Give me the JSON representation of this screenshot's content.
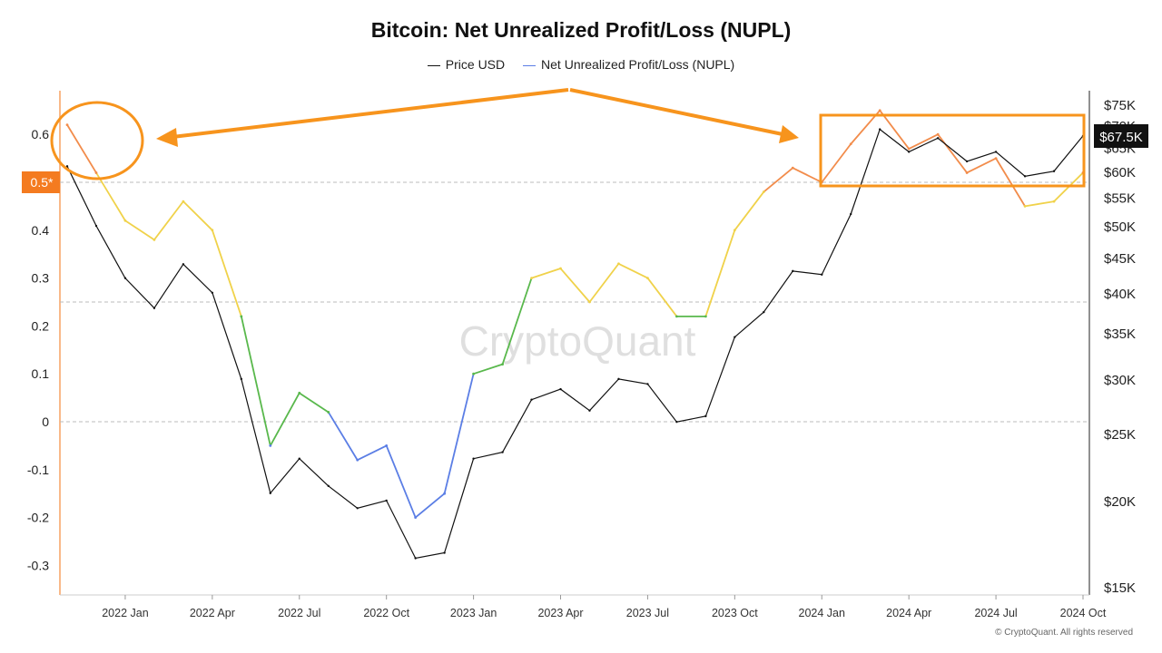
{
  "chart_data": {
    "type": "line",
    "title": "Bitcoin: Net Unrealized Profit/Loss (NUPL)",
    "left_axis": {
      "ticks": [
        "0.6",
        "0.5",
        "0.4",
        "0.3",
        "0.2",
        "0.1",
        "0",
        "-0.1",
        "-0.2",
        "-0.3"
      ],
      "ylim": [
        -0.35,
        0.68
      ]
    },
    "right_axis": {
      "ticks": [
        "$75K",
        "$70K",
        "$65K",
        "$60K",
        "$55K",
        "$50K",
        "$45K",
        "$40K",
        "$35K",
        "$30K",
        "$25K",
        "$20K",
        "$15K"
      ],
      "scale": "log"
    },
    "x_ticks": [
      "2022 Jan",
      "2022 Apr",
      "2022 Jul",
      "2022 Oct",
      "2023 Jan",
      "2023 Apr",
      "2023 Jul",
      "2023 Oct",
      "2024 Jan",
      "2024 Apr",
      "2024 Jul",
      "2024 Oct"
    ],
    "x": [
      "2021-11",
      "2021-12",
      "2022-01",
      "2022-02",
      "2022-03",
      "2022-04",
      "2022-05",
      "2022-06",
      "2022-07",
      "2022-08",
      "2022-09",
      "2022-10",
      "2022-11",
      "2022-12",
      "2023-01",
      "2023-02",
      "2023-03",
      "2023-04",
      "2023-05",
      "2023-06",
      "2023-07",
      "2023-08",
      "2023-09",
      "2023-10",
      "2023-11",
      "2023-12",
      "2024-01",
      "2024-02",
      "2024-03",
      "2024-04",
      "2024-05",
      "2024-06",
      "2024-07",
      "2024-08",
      "2024-09",
      "2024-10"
    ],
    "series": [
      {
        "name": "Price USD",
        "color": "#111111",
        "axis": "right",
        "values": [
          61000,
          50000,
          42000,
          38000,
          44000,
          40000,
          30000,
          20500,
          23000,
          21000,
          19500,
          20000,
          16500,
          16800,
          23000,
          23500,
          28000,
          29000,
          27000,
          30000,
          29500,
          26000,
          26500,
          34500,
          37500,
          43000,
          42500,
          52000,
          69000,
          64000,
          67000,
          62000,
          64000,
          59000,
          60000,
          67500
        ]
      },
      {
        "name": "Net Unrealized Profit/Loss (NUPL)",
        "color": "#5b7ee5",
        "axis": "left",
        "values": [
          0.62,
          0.52,
          0.42,
          0.38,
          0.46,
          0.4,
          0.22,
          -0.05,
          0.06,
          0.02,
          -0.08,
          -0.05,
          -0.2,
          -0.15,
          0.1,
          0.12,
          0.3,
          0.32,
          0.25,
          0.33,
          0.3,
          0.22,
          0.22,
          0.4,
          0.48,
          0.53,
          0.5,
          0.58,
          0.65,
          0.57,
          0.6,
          0.52,
          0.55,
          0.45,
          0.46,
          0.52
        ]
      }
    ],
    "reference_lines": [
      0.5,
      0.25,
      0
    ],
    "highlighted_reference": {
      "label": "0.5*",
      "value": 0.5,
      "color": "#f47b20"
    },
    "current_price_label": "$67.5K",
    "zone_colors": {
      "below_0": "#5b7ee5",
      "0_to_0.25": "#59b84c",
      "0.25_to_0.5": "#f0d24a",
      "above_0.5": "#f28c4b"
    },
    "annotation_color": "#f7941d",
    "legend_placement": "top-center",
    "watermark": "CryptoQuant"
  },
  "footer": "© CryptoQuant. All rights reserved"
}
